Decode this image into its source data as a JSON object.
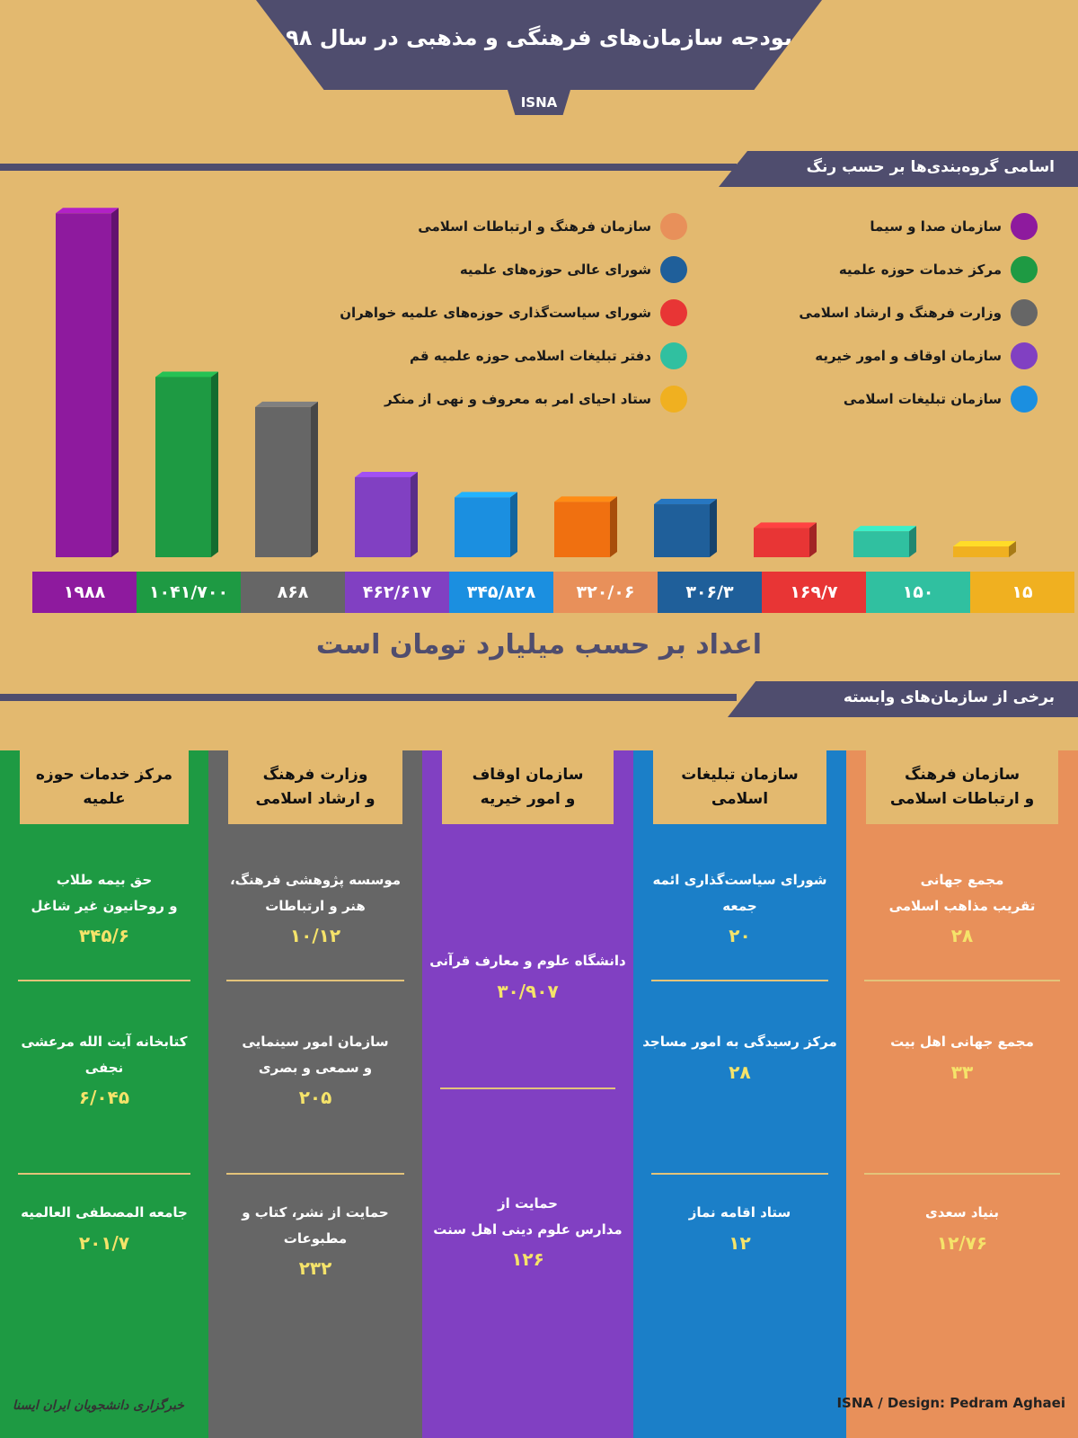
{
  "title": "بودجه سازمان‌های فرهنگی و مذهبی در سال ۹۸",
  "source_badge": "ISNA",
  "legend_header": "اسامی گروه‌بندی‌ها بر حسب رنگ",
  "legend_right": [
    {
      "label": "سازمان صدا و سیما",
      "color": "#8e1a9e"
    },
    {
      "label": "مرکز خدمات حوزه علمیه",
      "color": "#1e9a43"
    },
    {
      "label": "وزارت فرهنگ و ارشاد اسلامی",
      "color": "#666666"
    },
    {
      "label": "سازمان اوقاف و امور خیریه",
      "color": "#8140c2"
    },
    {
      "label": "سازمان تبلیغات اسلامی",
      "color": "#1b8fe0"
    }
  ],
  "legend_left": [
    {
      "label": "سازمان فرهنگ و ارتباطات اسلامی",
      "color": "#e8905a"
    },
    {
      "label": "شورای عالی حوزه‌های علمیه",
      "color": "#1f5f9a"
    },
    {
      "label": "شورای سیاست‌گذاری حوزه‌های علمیه خواهران",
      "color": "#e83535"
    },
    {
      "label": "دفتر تبلیغات اسلامی حوزه علمیه قم",
      "color": "#30c0a0"
    },
    {
      "label": "ستاد احیای امر به معروف و نهی از منکر",
      "color": "#f0b020"
    }
  ],
  "chart_data": {
    "type": "bar",
    "categories": [
      "سازمان صدا و سیما",
      "مرکز خدمات حوزه علمیه",
      "وزارت فرهنگ و ارشاد اسلامی",
      "سازمان اوقاف و امور خیریه",
      "سازمان تبلیغات اسلامی",
      "سازمان فرهنگ و ارتباطات اسلامی",
      "شورای عالی حوزه‌های علمیه",
      "شورای سیاست‌گذاری حوزه‌های علمیه خواهران",
      "دفتر تبلیغات اسلامی حوزه علمیه قم",
      "ستاد احیای امر به معروف و نهی از منکر"
    ],
    "values": [
      1988,
      1041.7,
      868,
      462.617,
      345.828,
      320.06,
      306.3,
      169.7,
      150,
      15
    ],
    "value_labels": [
      "۱۹۸۸",
      "۱۰۴۱/۷۰۰",
      "۸۶۸",
      "۴۶۲/۶۱۷",
      "۳۴۵/۸۲۸",
      "۳۲۰/۰۶",
      "۳۰۶/۳",
      "۱۶۹/۷",
      "۱۵۰",
      "۱۵"
    ],
    "bar_colors": [
      "#8e1a9e",
      "#1e9a43",
      "#666666",
      "#8140c2",
      "#1b8fe0",
      "#f07010",
      "#1f5f9a",
      "#e83535",
      "#30c0a0",
      "#f0b020"
    ],
    "label_colors": [
      "#8e1a9e",
      "#1e9a43",
      "#666666",
      "#8140c2",
      "#1b8fe0",
      "#e8905a",
      "#1f5f9a",
      "#e83535",
      "#30c0a0",
      "#f0b020"
    ],
    "unit_note": "اعداد بر حسب میلیارد تومان است"
  },
  "affiliates_header": "برخی از سازمان‌های وابسته",
  "columns": [
    {
      "title": "مرکز خدمات حوزه علمیه",
      "color": "#1e9a43",
      "items": [
        {
          "name": "حق بیمه طلاب\nو روحانیون غیر شاغل",
          "value": "۳۴۵/۶"
        },
        {
          "name": "کتابخانه آیت الله مرعشی نجفی",
          "value": "۶/۰۴۵"
        },
        {
          "name": "جامعه المصطفی العالمیه",
          "value": "۲۰۱/۷"
        }
      ]
    },
    {
      "title": "وزارت فرهنگ\nو ارشاد اسلامی",
      "color": "#666666",
      "items": [
        {
          "name": "موسسه پژوهشی فرهنگ،\nهنر و ارتباطات",
          "value": "۱۰/۱۲"
        },
        {
          "name": "سازمان امور سینمایی\nو سمعی و بصری",
          "value": "۲۰۵"
        },
        {
          "name": "حمایت از نشر، کتاب و مطبوعات",
          "value": "۲۳۲"
        }
      ]
    },
    {
      "title": "سازمان اوقاف\nو امور خیریه",
      "color": "#8140c2",
      "items": [
        {
          "name": "دانشگاه علوم و معارف قرآنی",
          "value": "۳۰/۹۰۷"
        },
        {
          "name": "حمایت از\nمدارس علوم دینی اهل سنت",
          "value": "۱۲۶"
        }
      ]
    },
    {
      "title": "سازمان تبلیغات اسلامی",
      "color": "#1b7fc8",
      "items": [
        {
          "name": "شورای سیاست‌گذاری ائمه جمعه",
          "value": "۲۰"
        },
        {
          "name": "مرکز رسیدگی به امور مساجد",
          "value": "۲۸"
        },
        {
          "name": "ستاد اقامه نماز",
          "value": "۱۲"
        }
      ]
    },
    {
      "title": "سازمان فرهنگ\nو ارتباطات اسلامی",
      "color": "#e8905a",
      "items": [
        {
          "name": "مجمع جهانی\nتقریب مذاهب اسلامی",
          "value": "۲۸"
        },
        {
          "name": "مجمع جهانی اهل بیت",
          "value": "۳۳"
        },
        {
          "name": "بنیاد سعدی",
          "value": "۱۲/۷۶"
        }
      ]
    }
  ],
  "footer_credit": "ISNA / Design: Pedram Aghaei",
  "agency_logo": "خبرگزاری دانشجویان ایران ایسنا"
}
